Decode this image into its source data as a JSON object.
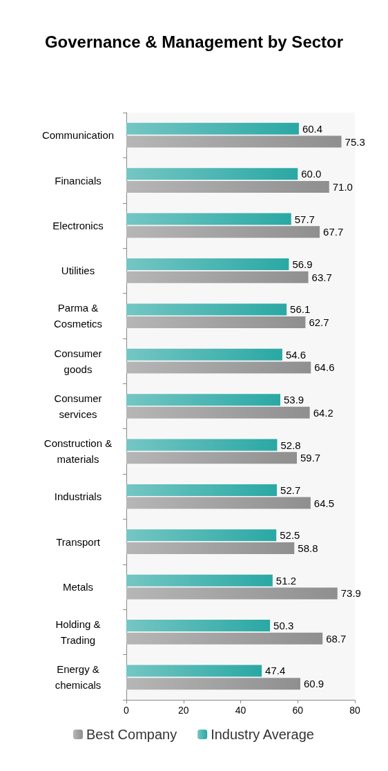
{
  "chart_data": {
    "type": "bar",
    "orientation": "horizontal",
    "title": "Governance & Management by Sector",
    "categories": [
      "Communication",
      "Financials",
      "Electronics",
      "Utilities",
      "Parma &\nCosmetics",
      "Consumer\ngoods",
      "Consumer\nservices",
      "Construction &\nmaterials",
      "Industrials",
      "Transport",
      "Metals",
      "Holding &\nTrading",
      "Energy &\nchemicals"
    ],
    "series": [
      {
        "name": "Industry Average",
        "color": "#2aa8a4",
        "values": [
          60.4,
          60.0,
          57.7,
          56.9,
          56.1,
          54.6,
          53.9,
          52.8,
          52.7,
          52.5,
          51.2,
          50.3,
          47.4
        ],
        "value_labels": [
          "60.4",
          "60.0",
          "57.7",
          "56.9",
          "56.1",
          "54.6",
          "53.9",
          "52.8",
          "52.7",
          "52.5",
          "51.2",
          "50.3",
          "47.4"
        ]
      },
      {
        "name": "Best Company",
        "color": "#8f8f8f",
        "values": [
          75.3,
          71.0,
          67.7,
          63.7,
          62.7,
          64.6,
          64.2,
          59.7,
          64.5,
          58.8,
          73.9,
          68.7,
          60.9
        ],
        "value_labels": [
          "75.3",
          "71.0",
          "67.7",
          "63.7",
          "62.7",
          "64.6",
          "64.2",
          "59.7",
          "64.5",
          "58.8",
          "73.9",
          "68.7",
          "60.9"
        ]
      }
    ],
    "xlim": [
      0,
      80
    ],
    "xticks": [
      0,
      20,
      40,
      60,
      80
    ],
    "grid": false,
    "legend": "bottom"
  }
}
